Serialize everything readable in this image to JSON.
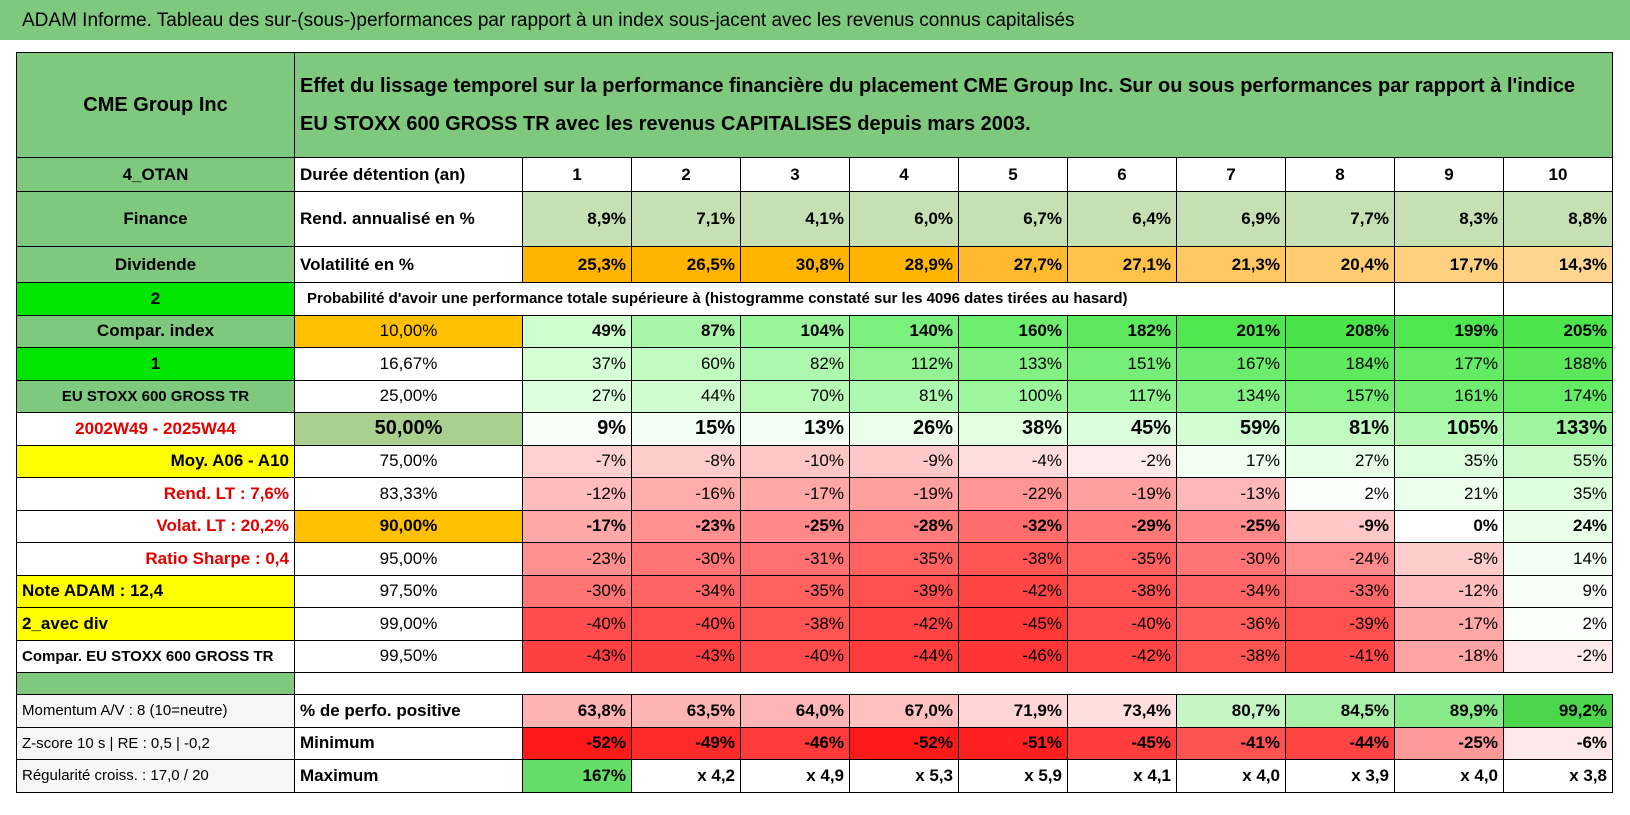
{
  "header": {
    "title": "ADAM Informe. Tableau des sur-(sous-)performances par rapport à un index sous-jacent avec les revenus connus capitalisés"
  },
  "table": {
    "name": "CME Group Inc",
    "description": "Effet du lissage temporel sur la performance financière du placement CME Group Inc. Sur ou sous performances par rapport à l'indice EU STOXX 600 GROSS TR avec les revenus CAPITALISES depuis mars 2003.",
    "rows": [
      {
        "left": "4_OTAN",
        "label": "Durée détention (an)",
        "cells": [
          "1",
          "2",
          "3",
          "4",
          "5",
          "6",
          "7",
          "8",
          "9",
          "10"
        ]
      },
      {
        "left": "Finance",
        "label": "Rend. annualisé en %",
        "cells": [
          "8,9%",
          "7,1%",
          "4,1%",
          "6,0%",
          "6,7%",
          "6,4%",
          "6,9%",
          "7,7%",
          "8,3%",
          "8,8%"
        ],
        "colors": [
          "#c6e0b4",
          "#c6e0b4",
          "#c6e0b4",
          "#c6e0b4",
          "#c6e0b4",
          "#c6e0b4",
          "#c6e0b4",
          "#c6e0b4",
          "#c6e0b4",
          "#c6e0b4"
        ]
      },
      {
        "left": "Dividende",
        "label": "Volatilité en %",
        "cells": [
          "25,3%",
          "26,5%",
          "30,8%",
          "28,9%",
          "27,7%",
          "27,1%",
          "21,3%",
          "20,4%",
          "17,7%",
          "14,3%"
        ],
        "colors": [
          "#ffb400",
          "#ffb400",
          "#ffb400",
          "#ffb400",
          "#ffbb30",
          "#ffc24a",
          "#ffc862",
          "#ffcc72",
          "#ffd080",
          "#ffd690"
        ]
      },
      {
        "left": "2",
        "label": "Probabilité d'avoir une performance totale supérieure à (histogramme constaté sur les 4096 dates tirées au hasard)",
        "cells": []
      },
      {
        "left": "Compar. index",
        "label": "10,00%",
        "label_color": "#ffc000",
        "cells": [
          "49%",
          "87%",
          "104%",
          "140%",
          "160%",
          "182%",
          "201%",
          "208%",
          "199%",
          "205%"
        ],
        "colors": [
          "#ccffcc",
          "#a8f7a8",
          "#99f599",
          "#7cf07c",
          "#6eee6e",
          "#5de95d",
          "#4fe64f",
          "#4ae44a",
          "#50e650",
          "#4ce54c"
        ]
      },
      {
        "left": "1",
        "label": "16,67%",
        "cells": [
          "37%",
          "60%",
          "82%",
          "112%",
          "133%",
          "151%",
          "167%",
          "184%",
          "177%",
          "188%"
        ],
        "colors": [
          "#d5ffd5",
          "#c0fbc0",
          "#aef8ae",
          "#93f393",
          "#84f184",
          "#77ee77",
          "#6cec6c",
          "#5ee95e",
          "#64ea64",
          "#5ae85a"
        ]
      },
      {
        "left": "EU STOXX 600 GROSS TR",
        "label": "25,00%",
        "cells": [
          "27%",
          "44%",
          "70%",
          "81%",
          "100%",
          "117%",
          "134%",
          "157%",
          "161%",
          "174%"
        ],
        "colors": [
          "#ddffdd",
          "#cffccf",
          "#b8f9b8",
          "#aff8af",
          "#9df59d",
          "#8ff38f",
          "#84f184",
          "#72ed72",
          "#70ed70",
          "#66eb66"
        ]
      },
      {
        "left": "2002W49 - 2025W44",
        "label": "50,00%",
        "label_color": "#a9d08e",
        "cells": [
          "9%",
          "15%",
          "13%",
          "26%",
          "38%",
          "45%",
          "59%",
          "81%",
          "105%",
          "133%"
        ],
        "colors": [
          "#f7fff7",
          "#f2fff2",
          "#f4fff4",
          "#ebffeb",
          "#e2ffe2",
          "#dcfddc",
          "#d2fcd2",
          "#c2fbc2",
          "#b2f8b2",
          "#9ff59f"
        ]
      },
      {
        "left": "Moy. A06 - A10",
        "label": "75,00%",
        "cells": [
          "-7%",
          "-8%",
          "-10%",
          "-9%",
          "-4%",
          "-2%",
          "17%",
          "27%",
          "35%",
          "55%"
        ],
        "colors": [
          "#ffd0d0",
          "#ffcccc",
          "#ffc6c6",
          "#ffc9c9",
          "#ffdddd",
          "#ffeaea",
          "#f0fff0",
          "#e6ffe6",
          "#ddffdd",
          "#ccfccc"
        ]
      },
      {
        "left": "Rend. LT :    7,6%",
        "label": "83,33%",
        "cells": [
          "-12%",
          "-16%",
          "-17%",
          "-19%",
          "-22%",
          "-19%",
          "-13%",
          "2%",
          "21%",
          "35%"
        ],
        "colors": [
          "#ffbcbc",
          "#ffacac",
          "#ffa8a8",
          "#ffa0a0",
          "#ff9494",
          "#ffa0a0",
          "#ffb8b8",
          "#fafffa",
          "#ecffec",
          "#ddffdd"
        ]
      },
      {
        "left": "Volat. LT :    20,2%",
        "label": "90,00%",
        "label_color": "#ffc000",
        "cells": [
          "-17%",
          "-23%",
          "-25%",
          "-28%",
          "-32%",
          "-29%",
          "-25%",
          "-9%",
          "0%",
          "24%"
        ],
        "colors": [
          "#ffa8a8",
          "#ff9090",
          "#ff8888",
          "#ff7c7c",
          "#ff6c6c",
          "#ff7878",
          "#ff8888",
          "#ffc9c9",
          "#ffffff",
          "#eaffea"
        ]
      },
      {
        "left": "Ratio Sharpe :     0,4",
        "label": "95,00%",
        "cells": [
          "-23%",
          "-30%",
          "-31%",
          "-35%",
          "-38%",
          "-35%",
          "-30%",
          "-24%",
          "-8%",
          "14%"
        ],
        "colors": [
          "#ff9090",
          "#ff7474",
          "#ff7070",
          "#ff6060",
          "#ff5454",
          "#ff6060",
          "#ff7474",
          "#ff8c8c",
          "#ffcccc",
          "#f2fff2"
        ]
      },
      {
        "left": "Note ADAM : 12,4",
        "label": "97,50%",
        "cells": [
          "-30%",
          "-34%",
          "-35%",
          "-39%",
          "-42%",
          "-38%",
          "-34%",
          "-33%",
          "-12%",
          "9%"
        ],
        "colors": [
          "#ff7474",
          "#ff6464",
          "#ff6060",
          "#ff5050",
          "#ff4444",
          "#ff5454",
          "#ff6464",
          "#ff6868",
          "#ffbcbc",
          "#f7fff7"
        ]
      },
      {
        "left": "2_avec div",
        "label": "99,00%",
        "cells": [
          "-40%",
          "-40%",
          "-38%",
          "-42%",
          "-45%",
          "-40%",
          "-36%",
          "-39%",
          "-17%",
          "2%"
        ],
        "colors": [
          "#ff4c4c",
          "#ff4c4c",
          "#ff5454",
          "#ff4444",
          "#ff3838",
          "#ff4c4c",
          "#ff5c5c",
          "#ff5050",
          "#ffa8a8",
          "#fafffa"
        ]
      },
      {
        "left": "Compar. EU STOXX 600 GROSS TR",
        "label": "99,50%",
        "cells": [
          "-43%",
          "-43%",
          "-40%",
          "-44%",
          "-46%",
          "-42%",
          "-38%",
          "-41%",
          "-18%",
          "-2%"
        ],
        "colors": [
          "#ff4040",
          "#ff4040",
          "#ff4c4c",
          "#ff3c3c",
          "#ff3434",
          "#ff4444",
          "#ff5454",
          "#ff4848",
          "#ffa4a4",
          "#ffeaea"
        ]
      }
    ],
    "summary_rows": [
      {
        "left": "Momentum A/V : 8 (10=neutre)",
        "label": "% de perfo. positive",
        "cells": [
          "63,8%",
          "63,5%",
          "64,0%",
          "67,0%",
          "71,9%",
          "73,4%",
          "80,7%",
          "84,5%",
          "89,9%",
          "99,2%"
        ],
        "colors": [
          "#ffb3b3",
          "#ffb3b3",
          "#ffb5b5",
          "#ffc0c0",
          "#ffd5d5",
          "#ffdede",
          "#c6f5c6",
          "#a8f0a8",
          "#88ea88",
          "#4cd64c"
        ]
      },
      {
        "left": "Z-score 10 s | RE : 0,5 | -0,2",
        "label": "Minimum",
        "cells": [
          "-52%",
          "-49%",
          "-46%",
          "-52%",
          "-51%",
          "-45%",
          "-41%",
          "-44%",
          "-25%",
          "-6%"
        ],
        "colors": [
          "#ff1a1a",
          "#ff2a2a",
          "#ff3a3a",
          "#ff1a1a",
          "#ff2020",
          "#ff3d3d",
          "#ff5353",
          "#ff4444",
          "#ff9a9a",
          "#ffe8e8"
        ]
      },
      {
        "left": "Régularité croiss. : 17,0 / 20",
        "label": "Maximum",
        "cells": [
          "167%",
          "x 4,2",
          "x 4,9",
          "x 5,3",
          "x 5,9",
          "x 4,1",
          "x 4,0",
          "x 3,9",
          "x 4,0",
          "x 3,8"
        ],
        "colors": [
          "#66dd66",
          "#ffffff",
          "#ffffff",
          "#ffffff",
          "#ffffff",
          "#ffffff",
          "#ffffff",
          "#ffffff",
          "#ffffff",
          "#ffffff"
        ]
      }
    ]
  }
}
